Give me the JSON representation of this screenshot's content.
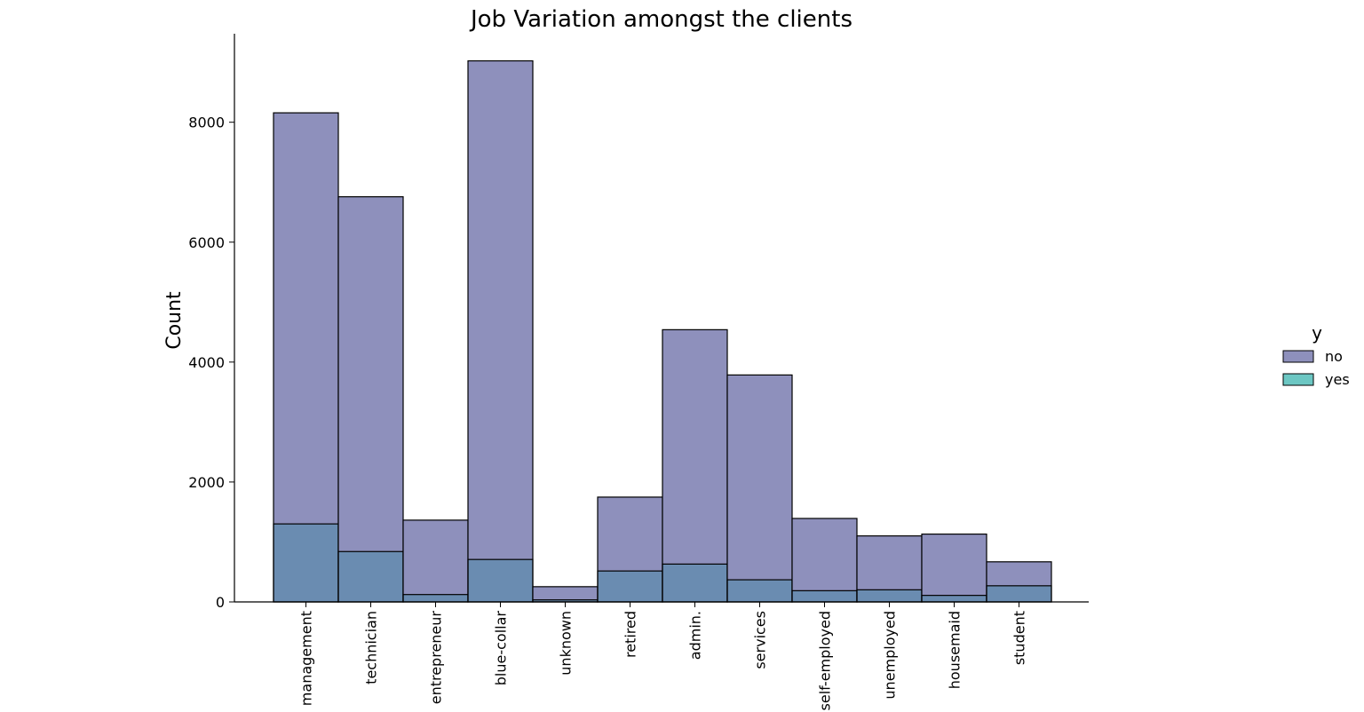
{
  "chart_data": {
    "type": "bar",
    "title": "Job Variation amongst the clients",
    "xlabel": "",
    "ylabel": "Count",
    "categories": [
      "management",
      "technician",
      "entrepreneur",
      "blue-collar",
      "unknown",
      "retired",
      "admin.",
      "services",
      "self-employed",
      "unemployed",
      "housemaid",
      "student"
    ],
    "series": [
      {
        "name": "no",
        "values": [
          8157,
          6757,
          1364,
          9024,
          254,
          1748,
          4540,
          3785,
          1392,
          1101,
          1131,
          669
        ],
        "color": "#8e90bc"
      },
      {
        "name": "yes",
        "values": [
          1301,
          840,
          123,
          708,
          34,
          516,
          631,
          369,
          187,
          202,
          109,
          269
        ],
        "color": "#6cc7c3"
      }
    ],
    "overlap_color": "#6a8cb1",
    "yticks": [
      0,
      2000,
      4000,
      6000,
      8000
    ],
    "ylim": [
      0,
      9476
    ],
    "legend": {
      "title": "y",
      "position": "right"
    },
    "grid": false
  }
}
